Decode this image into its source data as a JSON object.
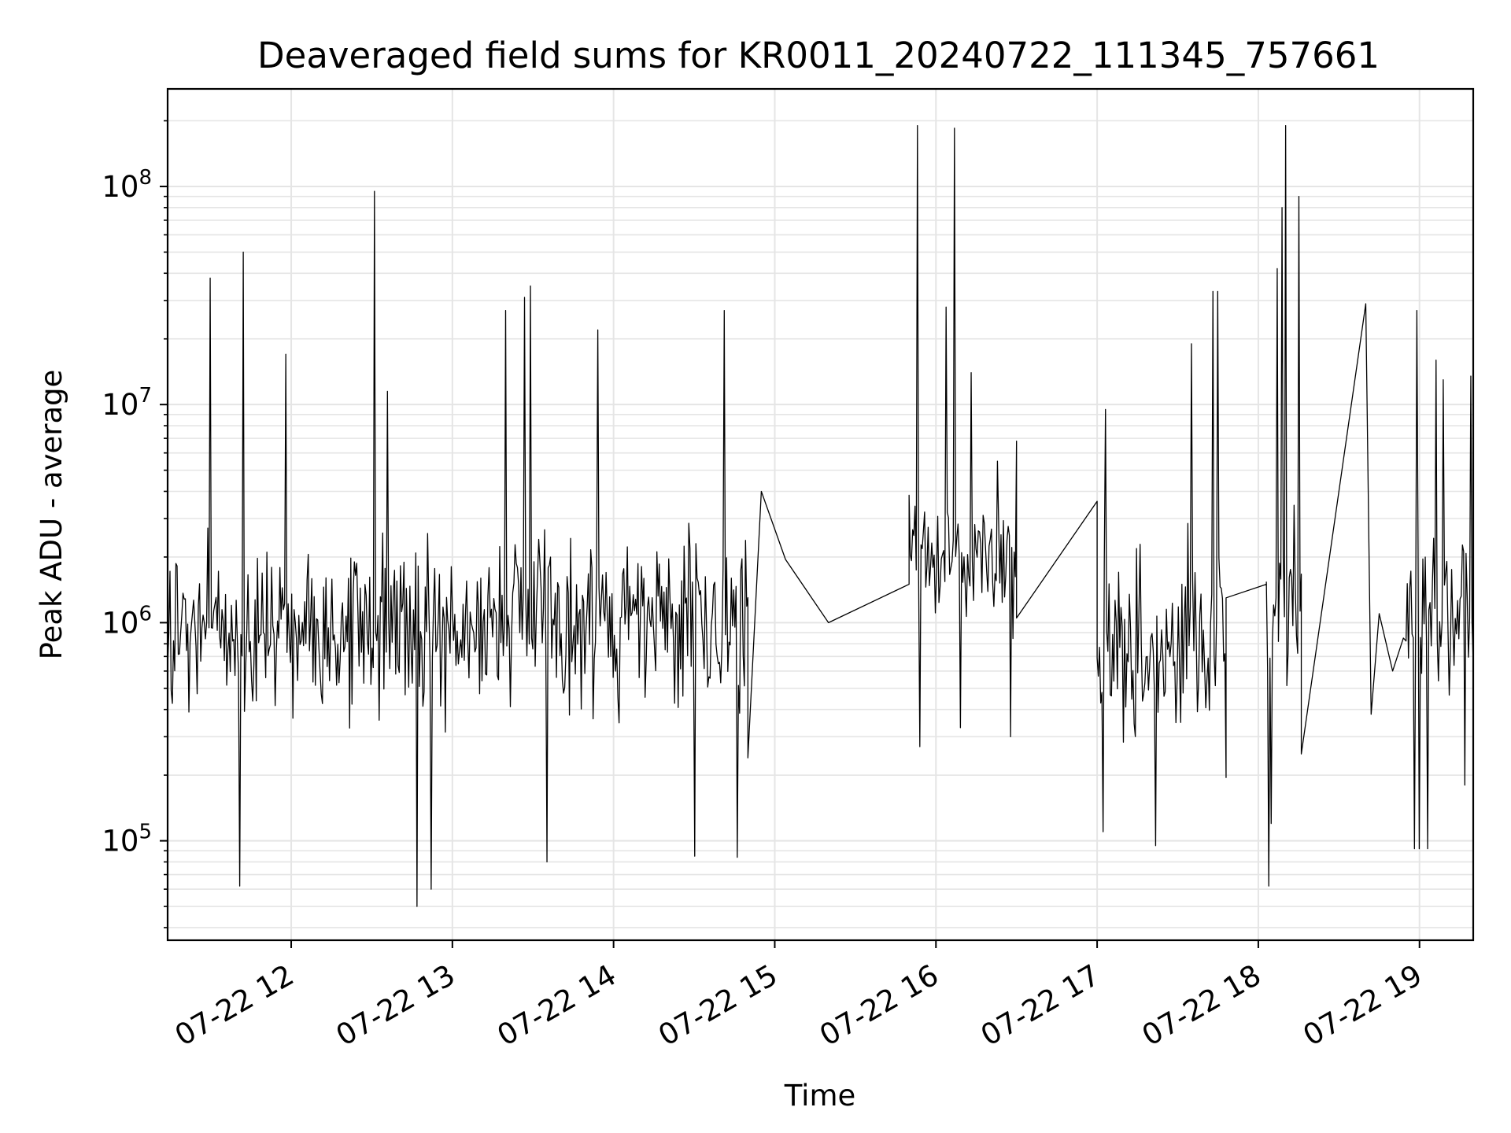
{
  "chart_data": {
    "type": "line",
    "title": "Deaveraged field sums for KR0011_20240722_111345_757661",
    "xlabel": "Time",
    "ylabel": "Peak ADU - average",
    "y_scale": "log",
    "ylim": [
      35000,
      280000000
    ],
    "xlim": [
      "07-22 11:14",
      "07-22 19:20"
    ],
    "grid": true,
    "line_color": "#000000",
    "grid_color": "#e5e5e5",
    "x_ticks": [
      "07-22 12",
      "07-22 13",
      "07-22 14",
      "07-22 15",
      "07-22 16",
      "07-22 17",
      "07-22 18",
      "07-22 19"
    ],
    "x_tick_hours": [
      12,
      13,
      14,
      15,
      16,
      17,
      18,
      19
    ],
    "y_ticks": [
      {
        "value": 100000,
        "base": "10",
        "exp": "5"
      },
      {
        "value": 1000000,
        "base": "10",
        "exp": "6"
      },
      {
        "value": 10000000,
        "base": "10",
        "exp": "7"
      },
      {
        "value": 100000000,
        "base": "10",
        "exp": "8"
      }
    ],
    "series": [
      {
        "segments": [
          {
            "from": "07-22 11:14",
            "to": "07-22 14:50",
            "baseline": 1000000,
            "spread_decades": 0.55,
            "spikes": [
              [
                "07-22 11:30",
                38000000
              ],
              [
                "07-22 11:42",
                50000000
              ],
              [
                "07-22 11:58",
                17000000
              ],
              [
                "07-22 12:31",
                95000000
              ],
              [
                "07-22 12:36",
                11500000
              ],
              [
                "07-22 13:20",
                27000000
              ],
              [
                "07-22 13:27",
                31000000
              ],
              [
                "07-22 13:29",
                35000000
              ],
              [
                "07-22 13:54",
                22000000
              ],
              [
                "07-22 14:41",
                27000000
              ]
            ],
            "dips": [
              [
                "07-22 11:41",
                62000
              ],
              [
                "07-22 12:47",
                50000
              ],
              [
                "07-22 12:52",
                60000
              ],
              [
                "07-22 13:35",
                80000
              ],
              [
                "07-22 14:30",
                85000
              ],
              [
                "07-22 14:46",
                84000
              ]
            ]
          },
          {
            "points": [
              [
                "07-22 14:50",
                240000
              ],
              [
                "07-22 14:55",
                4000000
              ],
              [
                "07-22 15:04",
                1950000
              ],
              [
                "07-22 15:20",
                1000000
              ],
              [
                "07-22 15:50",
                1500000
              ]
            ]
          },
          {
            "from": "07-22 15:50",
            "to": "07-22 16:30",
            "baseline": 2000000,
            "spread_decades": 0.45,
            "spikes": [
              [
                "07-22 15:53",
                190000000
              ],
              [
                "07-22 16:07",
                185000000
              ],
              [
                "07-22 16:04",
                28000000
              ],
              [
                "07-22 16:13",
                14000000
              ],
              [
                "07-22 16:23",
                5500000
              ],
              [
                "07-22 16:33",
                6800000
              ]
            ],
            "dips": [
              [
                "07-22 15:54",
                270000
              ],
              [
                "07-22 16:09",
                330000
              ],
              [
                "07-22 16:28",
                300000
              ]
            ]
          },
          {
            "points": [
              [
                "07-22 16:30",
                1050000
              ],
              [
                "07-22 17:00",
                3600000
              ]
            ]
          },
          {
            "from": "07-22 17:00",
            "to": "07-22 17:48",
            "baseline": 800000,
            "spread_decades": 0.6,
            "spikes": [
              [
                "07-22 17:03",
                9500000
              ],
              [
                "07-22 17:35",
                19000000
              ],
              [
                "07-22 17:43",
                33000000
              ],
              [
                "07-22 17:45",
                33000000
              ]
            ],
            "dips": [
              [
                "07-22 17:02",
                110000
              ],
              [
                "07-22 17:22",
                95000
              ],
              [
                "07-22 17:48",
                195000
              ]
            ]
          },
          {
            "points": [
              [
                "07-22 17:48",
                1300000
              ],
              [
                "07-22 18:03",
                1500000
              ]
            ]
          },
          {
            "from": "07-22 18:03",
            "to": "07-22 18:16",
            "baseline": 1300000,
            "spread_decades": 0.6,
            "spikes": [
              [
                "07-22 18:04",
                23000000
              ],
              [
                "07-22 18:07",
                42000000
              ],
              [
                "07-22 18:09",
                80000000
              ],
              [
                "07-22 18:10",
                190000000
              ],
              [
                "07-22 18:15",
                90000000
              ]
            ],
            "dips": [
              [
                "07-22 18:04",
                62000
              ],
              [
                "07-22 18:05",
                120000
              ]
            ]
          },
          {
            "points": [
              [
                "07-22 18:16",
                250000
              ],
              [
                "07-22 18:40",
                29000000
              ],
              [
                "07-22 18:42",
                380000
              ],
              [
                "07-22 18:45",
                1100000
              ],
              [
                "07-22 18:50",
                600000
              ],
              [
                "07-22 18:54",
                850000
              ]
            ]
          },
          {
            "from": "07-22 18:55",
            "to": "07-22 19:20",
            "baseline": 1000000,
            "spread_decades": 0.55,
            "spikes": [
              [
                "07-22 18:59",
                27000000
              ],
              [
                "07-22 19:06",
                16000000
              ],
              [
                "07-22 19:09",
                13000000
              ],
              [
                "07-22 19:19",
                13500000
              ]
            ],
            "dips": [
              [
                "07-22 18:58",
                92000
              ],
              [
                "07-22 19:00",
                92000
              ],
              [
                "07-22 19:03",
                92000
              ],
              [
                "07-22 19:17",
                180000
              ]
            ]
          }
        ]
      }
    ]
  }
}
